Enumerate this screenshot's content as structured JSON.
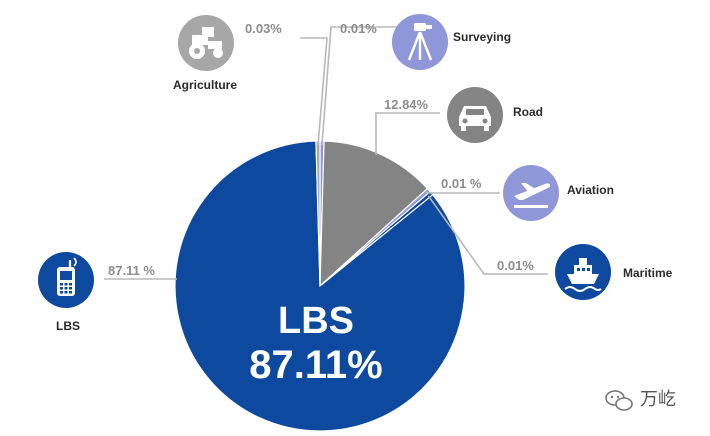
{
  "chart_data": {
    "type": "pie",
    "categories": [
      "LBS",
      "Road",
      "Aviation",
      "Maritime",
      "Surveying",
      "Agriculture"
    ],
    "values": [
      87.11,
      12.84,
      0.01,
      0.01,
      0.01,
      0.03
    ],
    "value_labels": [
      "87.11 %",
      "12.84%",
      "0.01 %",
      "0.01%",
      "0.01%",
      "0.03%"
    ],
    "center_label": {
      "line1": "LBS",
      "line2": "87.11%"
    },
    "colors": {
      "LBS": "#0d4a9f",
      "Road": "#848484",
      "Aviation": "#8f97d8",
      "Maritime": "#0d4a9f",
      "Surveying": "#8f97d8",
      "Agriculture": "#a7a7a7"
    },
    "icons": {
      "LBS": "mobile-phone-icon",
      "Road": "car-icon",
      "Aviation": "airplane-icon",
      "Maritime": "ship-icon",
      "Surveying": "surveyor-tripod-icon",
      "Agriculture": "tractor-icon"
    }
  },
  "watermark": {
    "text": "万屹",
    "icon": "wechat-icon"
  }
}
